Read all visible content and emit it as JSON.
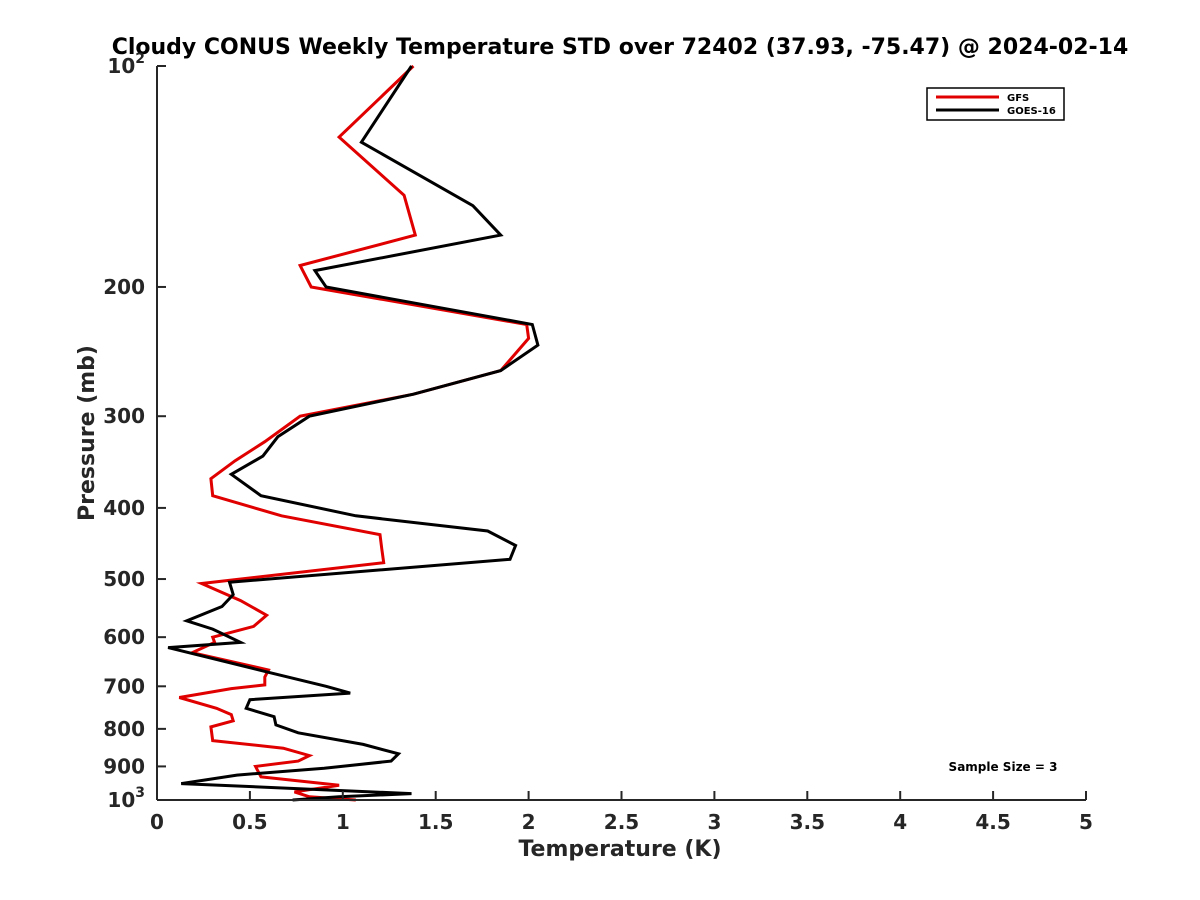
{
  "chart_data": {
    "type": "line",
    "title": "Cloudy CONUS Weekly Temperature STD over 72402 (37.93, -75.47) @ 2024-02-14",
    "xlabel": "Temperature (K)",
    "ylabel": "Pressure (mb)",
    "xlim": [
      0,
      5
    ],
    "ylim": [
      100,
      1000
    ],
    "yscale": "log",
    "yreversed": true,
    "x_ticks": [
      "0",
      "0.5",
      "1",
      "1.5",
      "2",
      "2.5",
      "3",
      "3.5",
      "4",
      "4.5",
      "5"
    ],
    "y_ticks": [
      {
        "value": 100,
        "base": "10",
        "exp": "2"
      },
      {
        "value": 200,
        "label": "200"
      },
      {
        "value": 300,
        "label": "300"
      },
      {
        "value": 400,
        "label": "400"
      },
      {
        "value": 500,
        "label": "500"
      },
      {
        "value": 600,
        "label": "600"
      },
      {
        "value": 700,
        "label": "700"
      },
      {
        "value": 800,
        "label": "800"
      },
      {
        "value": 900,
        "label": "900"
      },
      {
        "value": 1000,
        "base": "10",
        "exp": "3"
      }
    ],
    "grid": false,
    "legend_position": "top-right",
    "annotation": "Sample Size = 3",
    "series": [
      {
        "name": "GFS",
        "color": "#e00000",
        "points": [
          [
            1.38,
            100
          ],
          [
            0.98,
            125
          ],
          [
            1.33,
            150
          ],
          [
            1.39,
            170
          ],
          [
            0.77,
            187
          ],
          [
            0.83,
            200
          ],
          [
            1.99,
            225
          ],
          [
            2.0,
            235
          ],
          [
            1.85,
            260
          ],
          [
            1.38,
            280
          ],
          [
            0.77,
            300
          ],
          [
            0.58,
            325
          ],
          [
            0.42,
            345
          ],
          [
            0.29,
            365
          ],
          [
            0.3,
            385
          ],
          [
            0.67,
            410
          ],
          [
            1.2,
            435
          ],
          [
            1.21,
            455
          ],
          [
            1.22,
            475
          ],
          [
            0.24,
            507
          ],
          [
            0.45,
            535
          ],
          [
            0.59,
            560
          ],
          [
            0.52,
            580
          ],
          [
            0.3,
            600
          ],
          [
            0.31,
            610
          ],
          [
            0.19,
            630
          ],
          [
            0.6,
            665
          ],
          [
            0.58,
            680
          ],
          [
            0.58,
            697
          ],
          [
            0.4,
            705
          ],
          [
            0.12,
            725
          ],
          [
            0.32,
            750
          ],
          [
            0.4,
            765
          ],
          [
            0.41,
            780
          ],
          [
            0.29,
            795
          ],
          [
            0.3,
            830
          ],
          [
            0.68,
            850
          ],
          [
            0.82,
            870
          ],
          [
            0.76,
            885
          ],
          [
            0.53,
            900
          ],
          [
            0.56,
            930
          ],
          [
            0.98,
            955
          ],
          [
            0.74,
            975
          ],
          [
            0.82,
            990
          ],
          [
            1.07,
            1000
          ]
        ]
      },
      {
        "name": "GOES-16",
        "color": "#000000",
        "points": [
          [
            1.37,
            100
          ],
          [
            1.1,
            127
          ],
          [
            1.7,
            155
          ],
          [
            1.85,
            170
          ],
          [
            0.85,
            190
          ],
          [
            0.91,
            200
          ],
          [
            2.02,
            225
          ],
          [
            2.05,
            240
          ],
          [
            1.85,
            260
          ],
          [
            1.38,
            280
          ],
          [
            0.82,
            300
          ],
          [
            0.65,
            320
          ],
          [
            0.57,
            340
          ],
          [
            0.4,
            360
          ],
          [
            0.56,
            385
          ],
          [
            1.07,
            410
          ],
          [
            1.78,
            430
          ],
          [
            1.93,
            450
          ],
          [
            1.9,
            470
          ],
          [
            0.39,
            505
          ],
          [
            0.41,
            525
          ],
          [
            0.35,
            545
          ],
          [
            0.16,
            570
          ],
          [
            0.3,
            585
          ],
          [
            0.45,
            610
          ],
          [
            0.06,
            620
          ],
          [
            0.6,
            670
          ],
          [
            0.91,
            700
          ],
          [
            1.04,
            715
          ],
          [
            0.5,
            730
          ],
          [
            0.48,
            750
          ],
          [
            0.63,
            770
          ],
          [
            0.64,
            790
          ],
          [
            0.76,
            810
          ],
          [
            1.11,
            840
          ],
          [
            1.3,
            865
          ],
          [
            1.26,
            885
          ],
          [
            0.9,
            905
          ],
          [
            0.43,
            925
          ],
          [
            0.13,
            950
          ],
          [
            1.37,
            980
          ],
          [
            0.98,
            990
          ],
          [
            0.73,
            1000
          ]
        ]
      }
    ]
  }
}
